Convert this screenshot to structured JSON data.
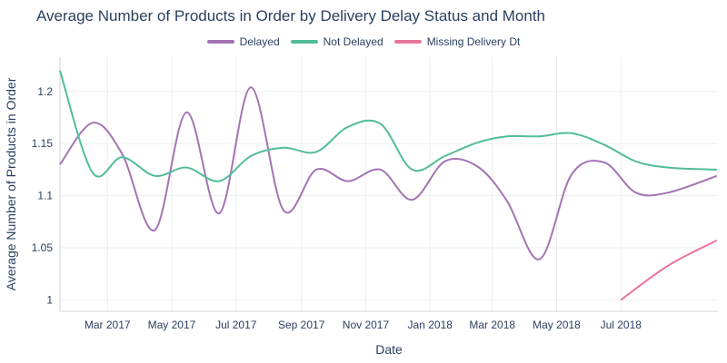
{
  "chart_data": {
    "type": "line",
    "title": "Average Number of Products in Order by Delivery Delay Status and Month",
    "xlabel": "Date",
    "ylabel": "Average Number of Products in Order",
    "ylim": [
      0.989,
      1.233
    ],
    "xlim": [
      "2017-01-15",
      "2018-10-01"
    ],
    "x_ticks": [
      {
        "date": "2017-03-01",
        "label": "Mar 2017"
      },
      {
        "date": "2017-05-01",
        "label": "May 2017"
      },
      {
        "date": "2017-07-01",
        "label": "Jul 2017"
      },
      {
        "date": "2017-09-01",
        "label": "Sep 2017"
      },
      {
        "date": "2017-11-01",
        "label": "Nov 2017"
      },
      {
        "date": "2018-01-01",
        "label": "Jan 2018"
      },
      {
        "date": "2018-03-01",
        "label": "Mar 2018"
      },
      {
        "date": "2018-05-01",
        "label": "May 2018"
      },
      {
        "date": "2018-07-01",
        "label": "Jul 2018"
      }
    ],
    "y_ticks": [
      {
        "value": 1.0,
        "label": "1"
      },
      {
        "value": 1.05,
        "label": "1.05"
      },
      {
        "value": 1.1,
        "label": "1.1"
      },
      {
        "value": 1.15,
        "label": "1.15"
      },
      {
        "value": 1.2,
        "label": "1.2"
      }
    ],
    "grid": true,
    "legend_position": "top-center",
    "series": [
      {
        "name": "Delayed",
        "color": "#a473b3",
        "x": [
          "2017-01-15",
          "2017-02-15",
          "2017-03-15",
          "2017-04-15",
          "2017-05-15",
          "2017-06-15",
          "2017-07-15",
          "2017-08-15",
          "2017-09-15",
          "2017-10-15",
          "2017-11-15",
          "2017-12-15",
          "2018-01-15",
          "2018-02-15",
          "2018-03-15",
          "2018-04-15",
          "2018-05-15",
          "2018-06-15",
          "2018-07-15",
          "2018-08-15",
          "2018-09-30"
        ],
        "values": [
          1.13,
          1.17,
          1.14,
          1.067,
          1.18,
          1.083,
          1.204,
          1.086,
          1.125,
          1.114,
          1.125,
          1.096,
          1.133,
          1.128,
          1.095,
          1.039,
          1.12,
          1.132,
          1.103,
          1.103,
          1.119
        ]
      },
      {
        "name": "Not Delayed",
        "color": "#52bc9a",
        "x": [
          "2017-01-15",
          "2017-02-15",
          "2017-03-15",
          "2017-04-15",
          "2017-05-15",
          "2017-06-15",
          "2017-07-15",
          "2017-08-15",
          "2017-09-15",
          "2017-10-15",
          "2017-11-15",
          "2017-12-15",
          "2018-01-15",
          "2018-02-15",
          "2018-03-15",
          "2018-04-15",
          "2018-05-15",
          "2018-06-15",
          "2018-07-15",
          "2018-08-15",
          "2018-09-30"
        ],
        "values": [
          1.22,
          1.122,
          1.137,
          1.119,
          1.127,
          1.114,
          1.138,
          1.146,
          1.142,
          1.166,
          1.169,
          1.125,
          1.138,
          1.151,
          1.157,
          1.157,
          1.16,
          1.149,
          1.133,
          1.127,
          1.125
        ]
      },
      {
        "name": "Missing Delivery Dt",
        "color": "#e8769b",
        "x": [
          "2018-07-01",
          "2018-08-15",
          "2018-09-30"
        ],
        "values": [
          1.0,
          1.033,
          1.057
        ]
      }
    ]
  }
}
